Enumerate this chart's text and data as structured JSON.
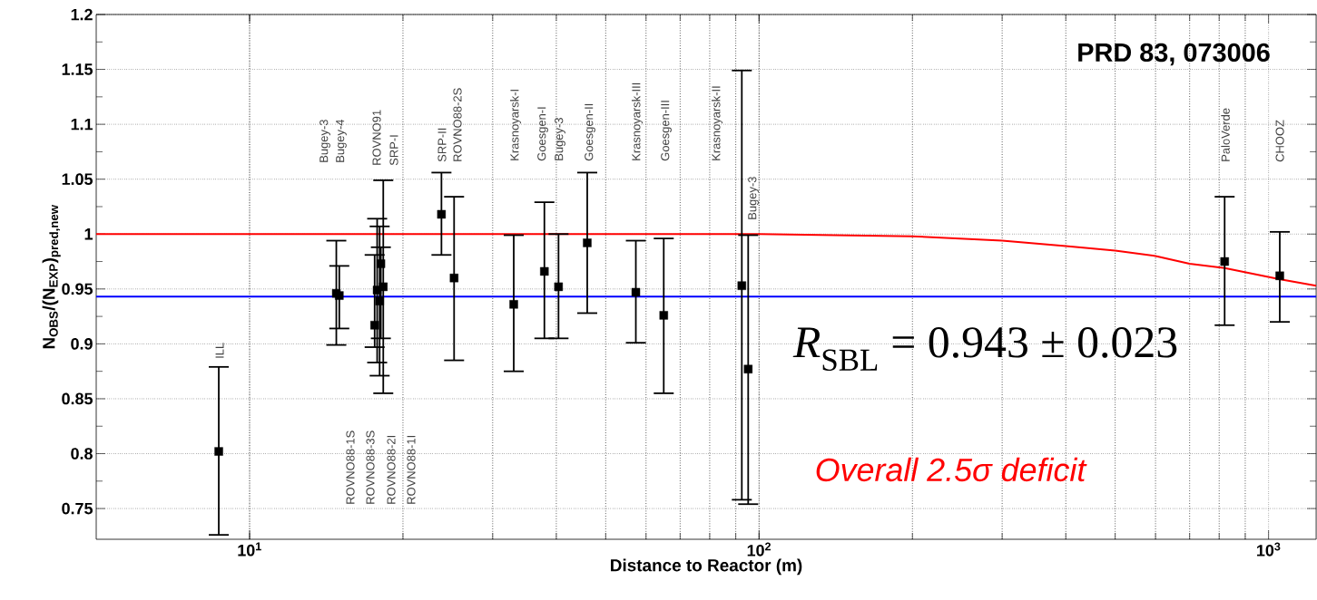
{
  "chart_data": {
    "type": "scatter",
    "xlabel": "Distance to Reactor (m)",
    "ylabel": "N$_{OBS}$/(N$_{EXP}$)$_{pred,new}$",
    "log": "x",
    "xlim": [
      5,
      1240
    ],
    "ylim": [
      0.722,
      1.2
    ],
    "xticks": [
      {
        "value": 10,
        "label": "10$^{1}$"
      },
      {
        "value": 100,
        "label": "10$^{2}$"
      },
      {
        "value": 1000,
        "label": "10$^{3}$"
      }
    ],
    "yticks": [
      0.75,
      0.8,
      0.85,
      0.9,
      0.95,
      1,
      1.05,
      1.1,
      1.15,
      1.2
    ],
    "grid": true,
    "series": [
      {
        "color": "#000000",
        "marker": "square",
        "x": [
          8.7,
          14.8,
          15.0,
          18.1,
          18.3,
          17.8,
          18.0,
          17.6,
          23.8,
          25.2,
          33.0,
          37.9,
          40.4,
          46.0,
          57.3,
          65.0,
          92.5,
          95.2,
          820,
          1052
        ],
        "values": [
          0.802,
          0.946,
          0.944,
          0.973,
          0.952,
          0.949,
          0.939,
          0.917,
          1.018,
          0.96,
          0.936,
          0.966,
          0.952,
          0.992,
          0.947,
          0.926,
          0.953,
          0.877,
          0.975,
          0.962
        ],
        "errors": [
          [
            0.726,
            0.879
          ],
          [
            0.899,
            0.994
          ],
          [
            0.914,
            0.971
          ],
          [
            0.905,
            0.988
          ],
          [
            0.855,
            1.049
          ],
          [
            0.883,
            1.014
          ],
          [
            0.871,
            1.007
          ],
          [
            0.897,
            0.981
          ],
          [
            0.981,
            1.056
          ],
          [
            0.885,
            1.034
          ],
          [
            0.875,
            0.999
          ],
          [
            0.905,
            1.029
          ],
          [
            0.905,
            1.0
          ],
          [
            0.928,
            1.056
          ],
          [
            0.901,
            0.994
          ],
          [
            0.855,
            0.996
          ],
          [
            0.758,
            1.149
          ],
          [
            0.754,
            0.999
          ],
          [
            0.917,
            1.034
          ],
          [
            0.92,
            1.002
          ]
        ]
      },
      {
        "type": "line",
        "color": "#ff0000",
        "marker": "none",
        "x": [
          5,
          50,
          100,
          200,
          300,
          400,
          500,
          600,
          700,
          820,
          1050,
          1240
        ],
        "values": [
          1.0,
          1.0,
          1.0,
          0.998,
          0.994,
          0.989,
          0.985,
          0.98,
          0.973,
          0.969,
          0.959,
          0.953
        ]
      }
    ],
    "ref_lines": [
      {
        "axis": "y",
        "value": 0.943,
        "color": "#0000ff"
      }
    ],
    "annotations": [
      "ILL",
      "Bugey-3",
      "Bugey-4",
      "ROVNO91",
      "SRP-I",
      "SRP-II",
      "ROVNO88-2S",
      "ROVNO88-1S",
      "ROVNO88-3S",
      "ROVNO88-2I",
      "ROVNO88-1I",
      "Krasnoyarsk-I",
      "Goesgen-I",
      "Bugey-3",
      "Goesgen-II",
      "Krasnoyarsk-III",
      "Goesgen-III",
      "Krasnoyarsk-II",
      "Bugey-3",
      "PaloVerde",
      "CHOOZ",
      "PRD 83, 073006",
      "*R*$_{SBL}$ = 0.943 ± 0.023",
      "Overall 2.5σ deficit"
    ]
  }
}
